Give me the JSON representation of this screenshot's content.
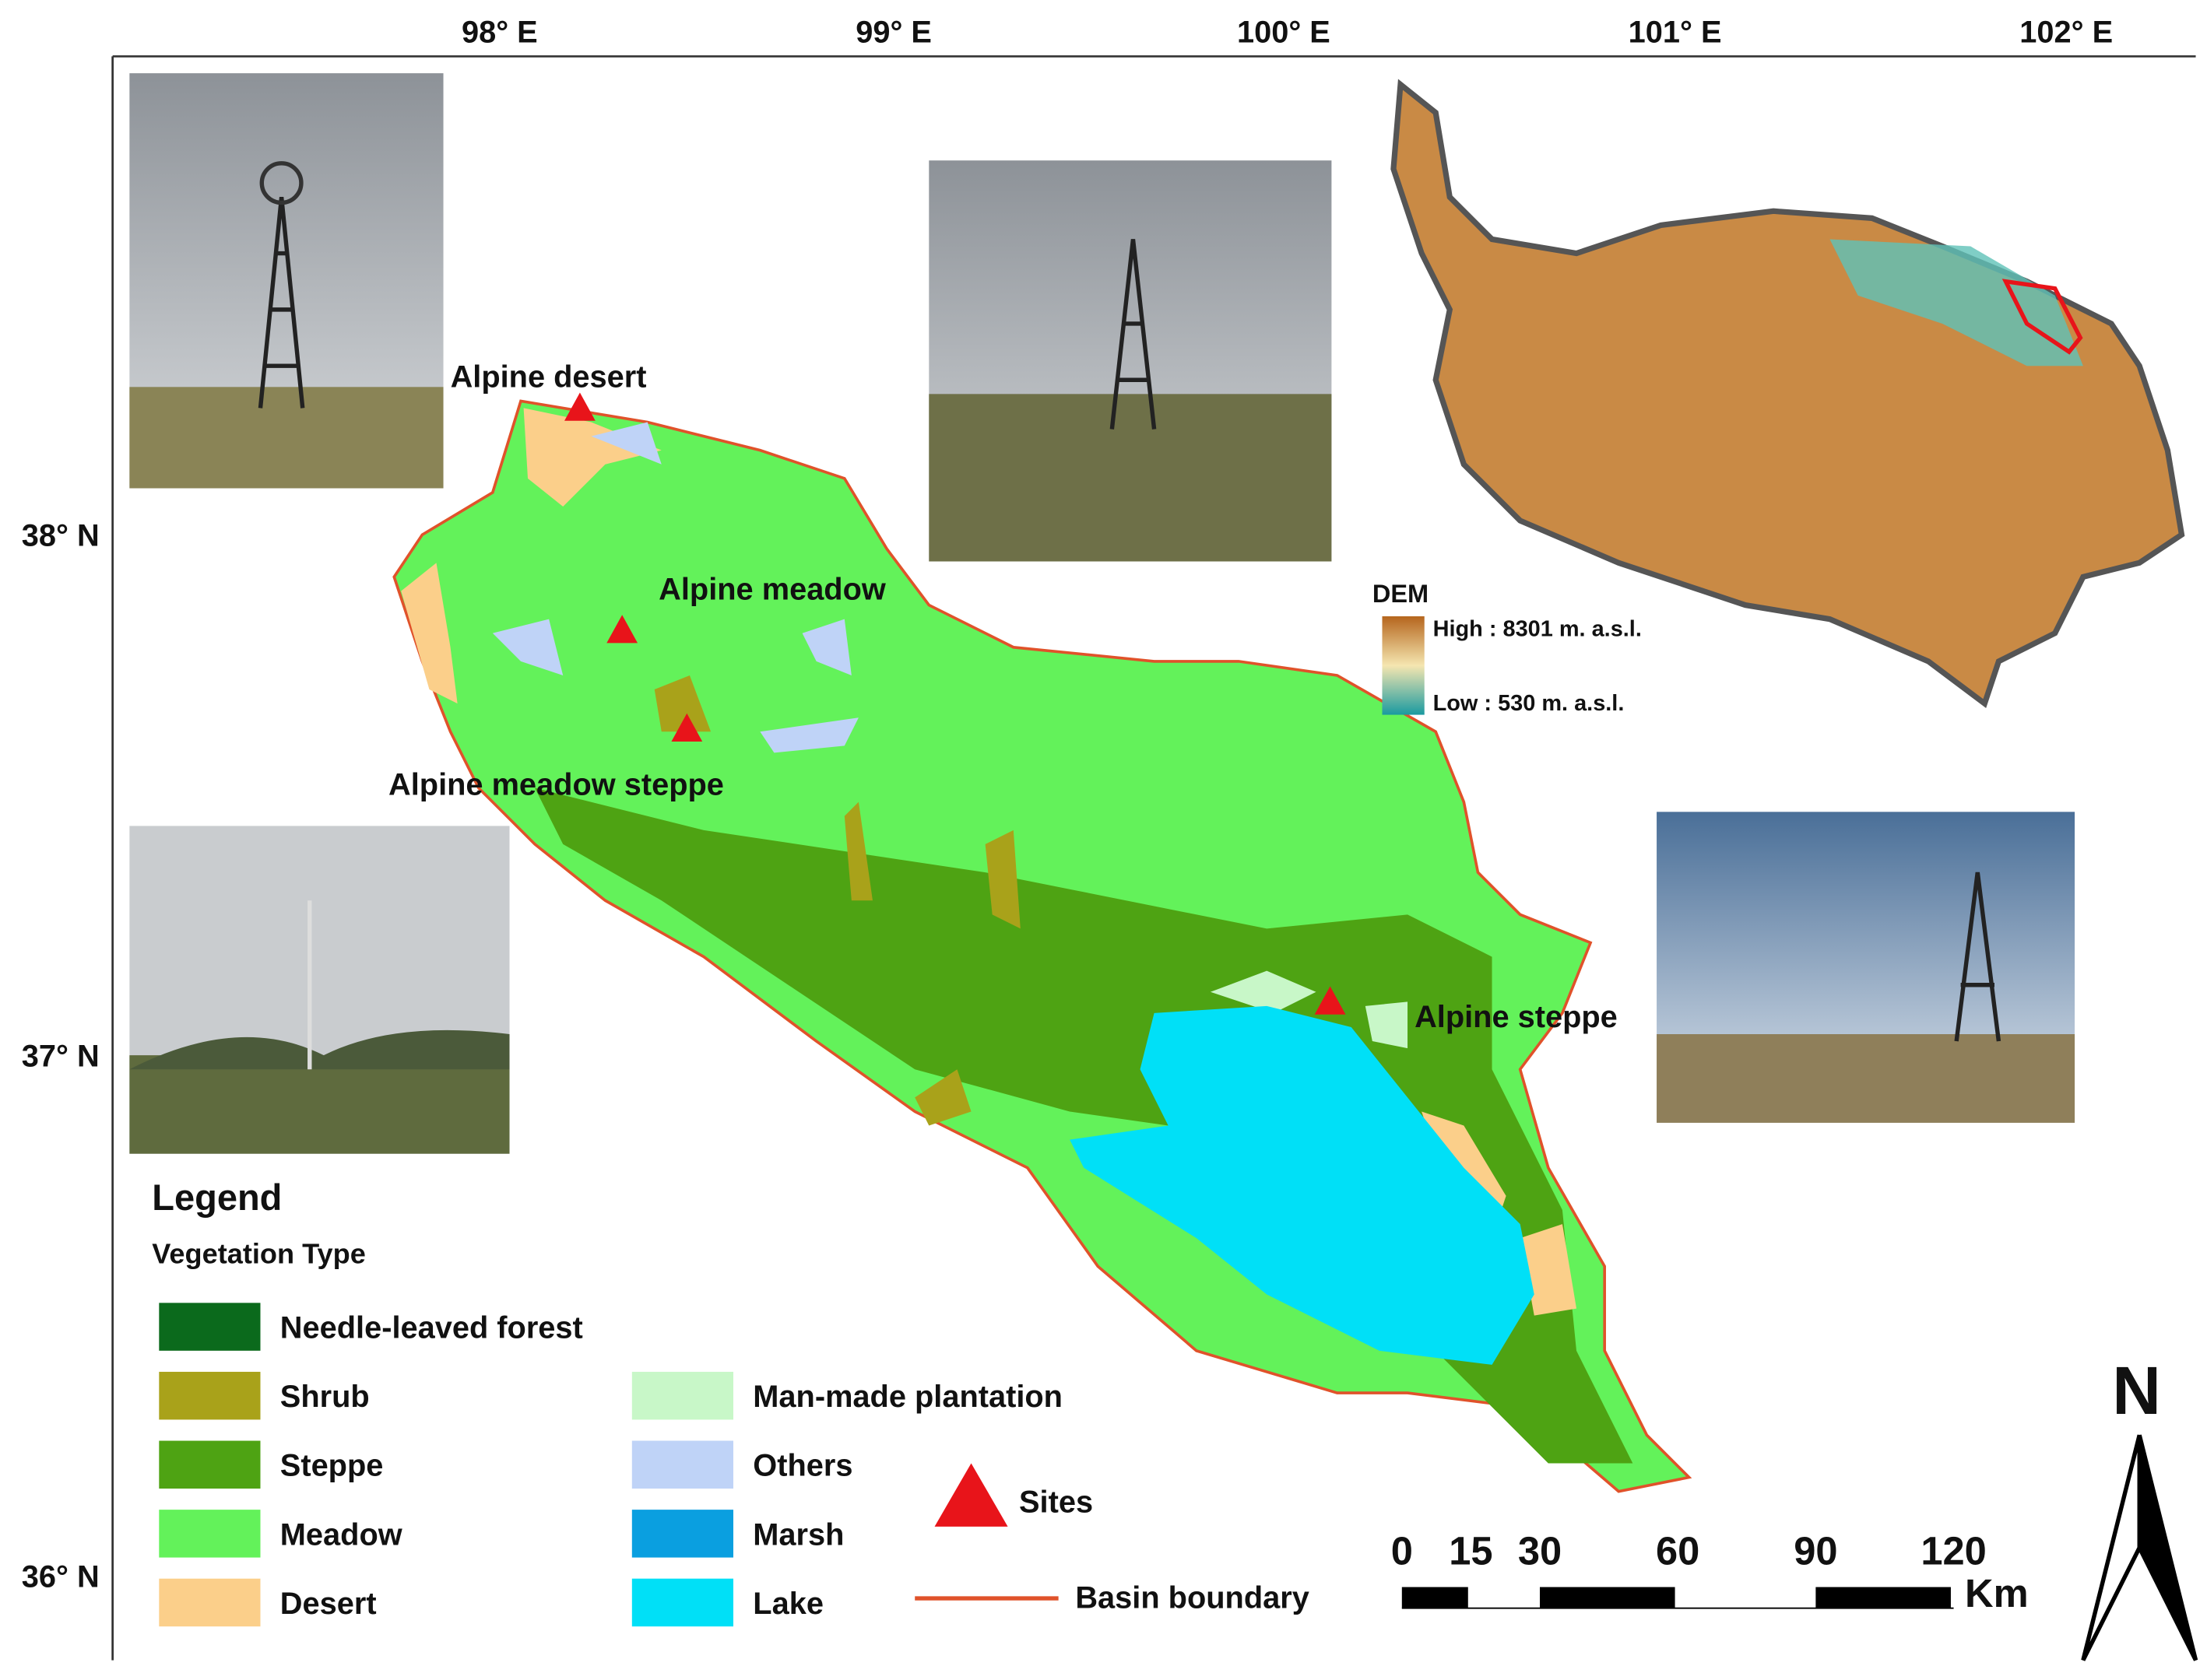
{
  "axes": {
    "longitude": [
      "98° E",
      "99° E",
      "100° E",
      "101° E",
      "102° E"
    ],
    "latitude": [
      "38° N",
      "37° N",
      "36° N"
    ]
  },
  "sites": [
    "Alpine desert",
    "Alpine meadow",
    "Alpine meadow steppe",
    "Alpine steppe"
  ],
  "dem": {
    "title": "DEM",
    "high": "High : 8301 m. a.s.l.",
    "low": "Low : 530 m. a.s.l."
  },
  "legend": {
    "title": "Legend",
    "subtitle": "Vegetation Type",
    "items": [
      {
        "label": "Needle-leaved forest",
        "color": "#0b6a1c"
      },
      {
        "label": "Shrub",
        "color": "#a9a21a"
      },
      {
        "label": "Steppe",
        "color": "#4ea313"
      },
      {
        "label": "Meadow",
        "color": "#63f25a"
      },
      {
        "label": "Desert",
        "color": "#fbcf8a"
      },
      {
        "label": "Man-made plantation",
        "color": "#c8f7c8"
      },
      {
        "label": "Others",
        "color": "#bfd3f7"
      },
      {
        "label": "Marsh",
        "color": "#0a9fe0"
      },
      {
        "label": "Lake",
        "color": "#00e0f7"
      }
    ],
    "sites": "Sites",
    "boundary": "Basin boundary"
  },
  "scale_bar": {
    "ticks": [
      0,
      15,
      30,
      60,
      90,
      120
    ],
    "unit": "Km"
  },
  "north": "N"
}
